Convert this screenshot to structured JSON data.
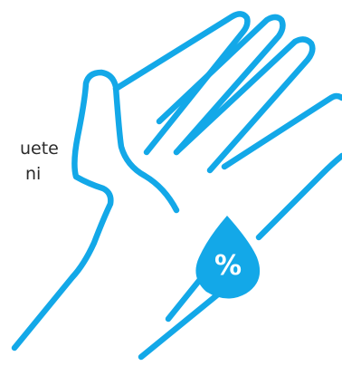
{
  "side_text": {
    "line1": "uete",
    "line2": "ni"
  },
  "illustration": {
    "icon": "hand-with-drop-icon",
    "drop_label": "%"
  },
  "colors": {
    "accent": "#13a8e8",
    "text": "#2b2b2b",
    "background": "#ffffff"
  }
}
